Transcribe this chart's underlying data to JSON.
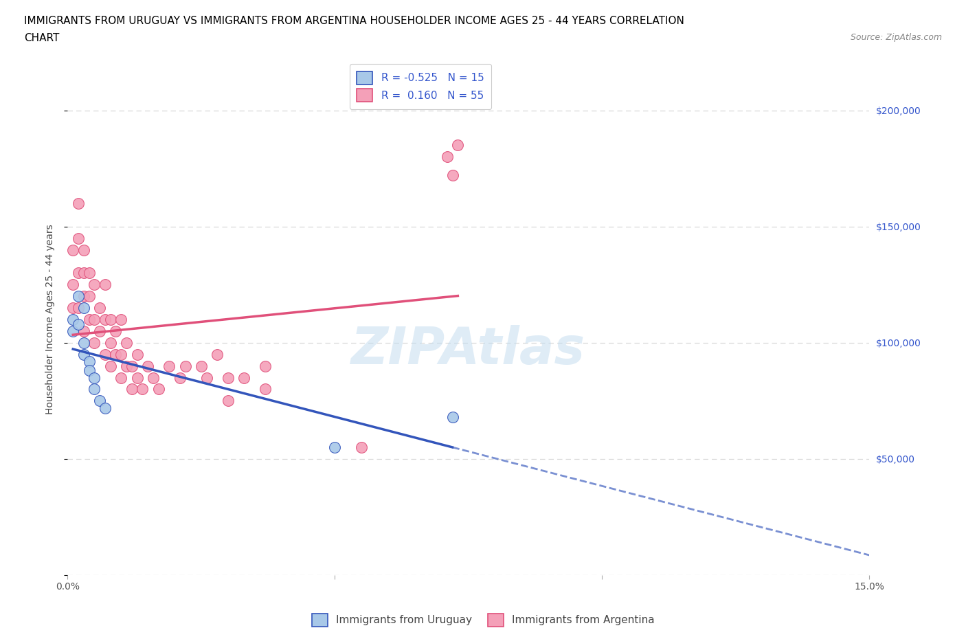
{
  "title_line1": "IMMIGRANTS FROM URUGUAY VS IMMIGRANTS FROM ARGENTINA HOUSEHOLDER INCOME AGES 25 - 44 YEARS CORRELATION",
  "title_line2": "CHART",
  "source_text": "Source: ZipAtlas.com",
  "ylabel": "Householder Income Ages 25 - 44 years",
  "xlim": [
    0.0,
    0.15
  ],
  "ylim": [
    0,
    220000
  ],
  "xticks": [
    0.0,
    0.05,
    0.1,
    0.15
  ],
  "xticklabels": [
    "0.0%",
    "",
    "",
    "15.0%"
  ],
  "yticks": [
    0,
    50000,
    100000,
    150000,
    200000
  ],
  "yticklabels": [
    "",
    "$50,000",
    "$100,000",
    "$150,000",
    "$200,000"
  ],
  "watermark": "ZIPAtlas",
  "color_uruguay": "#a8c8e8",
  "color_argentina": "#f4a0b8",
  "color_trend_uruguay": "#3355bb",
  "color_trend_argentina": "#e0507a",
  "uruguay_x": [
    0.001,
    0.001,
    0.002,
    0.002,
    0.003,
    0.003,
    0.003,
    0.004,
    0.004,
    0.005,
    0.005,
    0.006,
    0.007,
    0.072,
    0.05
  ],
  "uruguay_y": [
    110000,
    105000,
    120000,
    108000,
    115000,
    100000,
    95000,
    92000,
    88000,
    85000,
    80000,
    75000,
    72000,
    68000,
    55000
  ],
  "argentina_x": [
    0.001,
    0.001,
    0.001,
    0.002,
    0.002,
    0.002,
    0.002,
    0.003,
    0.003,
    0.003,
    0.003,
    0.004,
    0.004,
    0.004,
    0.005,
    0.005,
    0.005,
    0.006,
    0.006,
    0.007,
    0.007,
    0.007,
    0.008,
    0.008,
    0.008,
    0.009,
    0.009,
    0.01,
    0.01,
    0.01,
    0.011,
    0.011,
    0.012,
    0.012,
    0.013,
    0.013,
    0.014,
    0.015,
    0.016,
    0.017,
    0.019,
    0.021,
    0.022,
    0.025,
    0.026,
    0.028,
    0.03,
    0.03,
    0.033,
    0.037,
    0.037,
    0.055,
    0.071,
    0.072,
    0.073
  ],
  "argentina_y": [
    125000,
    115000,
    140000,
    160000,
    145000,
    130000,
    115000,
    140000,
    130000,
    120000,
    105000,
    130000,
    120000,
    110000,
    125000,
    110000,
    100000,
    115000,
    105000,
    125000,
    110000,
    95000,
    110000,
    100000,
    90000,
    105000,
    95000,
    85000,
    95000,
    110000,
    90000,
    100000,
    90000,
    80000,
    95000,
    85000,
    80000,
    90000,
    85000,
    80000,
    90000,
    85000,
    90000,
    90000,
    85000,
    95000,
    85000,
    75000,
    85000,
    90000,
    80000,
    55000,
    180000,
    172000,
    185000
  ],
  "grid_color": "#d8d8d8",
  "background_color": "#ffffff",
  "title_fontsize": 11,
  "axis_label_fontsize": 10,
  "tick_fontsize": 10,
  "legend_fontsize": 11
}
